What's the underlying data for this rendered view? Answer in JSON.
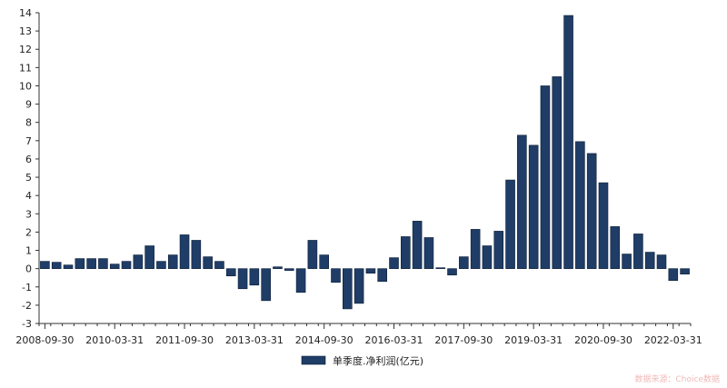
{
  "chart_data": {
    "type": "bar",
    "title": "",
    "xlabel": "",
    "ylabel": "",
    "ylim": [
      -3,
      14
    ],
    "yticks": [
      -3,
      -2,
      -1,
      0,
      1,
      2,
      3,
      4,
      5,
      6,
      7,
      8,
      9,
      10,
      11,
      12,
      13,
      14
    ],
    "grid": false,
    "legend_position": "bottom",
    "x_tick_labels": [
      "2008-09-30",
      "2010-03-31",
      "2011-09-30",
      "2013-03-31",
      "2014-09-30",
      "2016-03-31",
      "2017-09-30",
      "2019-03-31",
      "2020-09-30",
      "2022-03-31"
    ],
    "bar_color": "#1f3d66",
    "series": [
      {
        "name": "单季度.净利润(亿元)",
        "values": [
          0.4,
          0.35,
          0.2,
          0.55,
          0.55,
          0.55,
          0.25,
          0.4,
          0.75,
          1.25,
          0.4,
          0.75,
          1.85,
          1.55,
          0.65,
          0.4,
          -0.4,
          -1.1,
          -0.9,
          -1.75,
          0.1,
          -0.1,
          -1.3,
          1.55,
          0.75,
          -0.75,
          -2.2,
          -1.9,
          -0.25,
          -0.7,
          0.6,
          1.75,
          2.6,
          1.7,
          0.05,
          -0.35,
          0.65,
          2.15,
          1.25,
          2.05,
          4.85,
          7.3,
          6.75,
          10.0,
          10.5,
          13.85,
          6.95,
          6.3,
          4.7,
          2.3,
          0.8,
          1.9,
          0.9,
          0.75,
          -0.65,
          -0.3
        ]
      }
    ]
  },
  "watermark": "数据来源：Choice数据"
}
